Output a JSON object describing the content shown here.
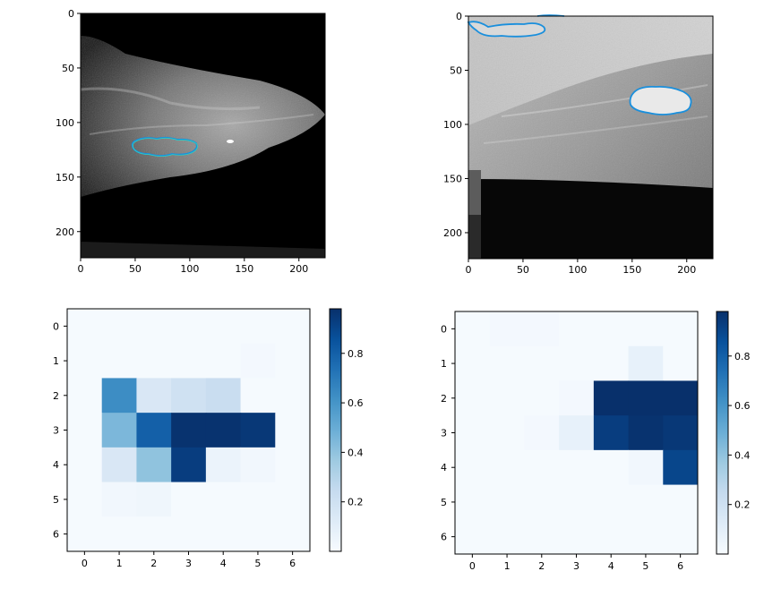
{
  "chart_data": [
    {
      "type": "image",
      "subplot": "top-left",
      "title": "",
      "xticks": [
        0,
        50,
        100,
        150,
        200
      ],
      "yticks": [
        0,
        50,
        100,
        150,
        200
      ],
      "xlim": [
        0,
        224
      ],
      "ylim": [
        224,
        0
      ],
      "contours": [
        {
          "color": "#1a8fdc",
          "center": [
            72,
            121
          ],
          "radius": [
            30,
            8
          ]
        }
      ]
    },
    {
      "type": "image",
      "subplot": "top-right",
      "title": "",
      "xticks": [
        0,
        50,
        100,
        150,
        200
      ],
      "yticks": [
        0,
        50,
        100,
        150,
        200
      ],
      "xlim": [
        0,
        224
      ],
      "ylim": [
        224,
        0
      ],
      "contours": [
        {
          "color": "#1a8fdc",
          "center": [
            178,
            75
          ],
          "radius": [
            28,
            11
          ]
        },
        {
          "color": "#1a8fdc",
          "center": [
            40,
            8
          ],
          "radius": [
            32,
            9
          ]
        }
      ]
    },
    {
      "type": "heatmap",
      "subplot": "bottom-left",
      "title": "",
      "colormap": "Blues",
      "xticks": [
        0,
        1,
        2,
        3,
        4,
        5,
        6
      ],
      "yticks": [
        0,
        1,
        2,
        3,
        4,
        5,
        6
      ],
      "colorbar_ticks": [
        0.2,
        0.4,
        0.6,
        0.8
      ],
      "vmin": 0.0,
      "vmax": 0.98,
      "values": [
        [
          0.01,
          0.01,
          0.01,
          0.01,
          0.01,
          0.01,
          0.01
        ],
        [
          0.01,
          0.01,
          0.01,
          0.01,
          0.01,
          0.02,
          0.01
        ],
        [
          0.01,
          0.63,
          0.15,
          0.2,
          0.23,
          0.01,
          0.01
        ],
        [
          0.01,
          0.45,
          0.8,
          0.97,
          0.97,
          0.95,
          0.01
        ],
        [
          0.01,
          0.15,
          0.4,
          0.93,
          0.06,
          0.03,
          0.01
        ],
        [
          0.01,
          0.03,
          0.04,
          0.01,
          0.01,
          0.01,
          0.01
        ],
        [
          0.01,
          0.01,
          0.01,
          0.01,
          0.01,
          0.01,
          0.01
        ]
      ]
    },
    {
      "type": "heatmap",
      "subplot": "bottom-right",
      "title": "",
      "colormap": "Blues",
      "xticks": [
        0,
        1,
        2,
        3,
        4,
        5,
        6
      ],
      "yticks": [
        0,
        1,
        2,
        3,
        4,
        5,
        6
      ],
      "colorbar_ticks": [
        0.2,
        0.4,
        0.6,
        0.8
      ],
      "vmin": 0.0,
      "vmax": 0.98,
      "values": [
        [
          0.01,
          0.02,
          0.02,
          0.01,
          0.01,
          0.01,
          0.01
        ],
        [
          0.01,
          0.01,
          0.01,
          0.01,
          0.01,
          0.08,
          0.01
        ],
        [
          0.01,
          0.01,
          0.01,
          0.02,
          0.98,
          0.98,
          0.98
        ],
        [
          0.01,
          0.01,
          0.02,
          0.08,
          0.93,
          0.97,
          0.95
        ],
        [
          0.01,
          0.01,
          0.01,
          0.01,
          0.01,
          0.03,
          0.9
        ],
        [
          0.01,
          0.01,
          0.01,
          0.01,
          0.01,
          0.01,
          0.01
        ],
        [
          0.01,
          0.01,
          0.01,
          0.01,
          0.01,
          0.01,
          0.01
        ]
      ]
    }
  ]
}
